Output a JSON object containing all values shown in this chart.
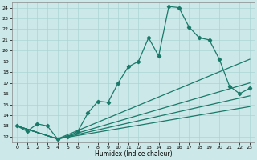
{
  "xlabel": "Humidex (Indice chaleur)",
  "bg_color": "#cce8e8",
  "line_color": "#1a7a6a",
  "grid_color": "#aad4d4",
  "xlim": [
    -0.5,
    23.5
  ],
  "ylim": [
    11.5,
    24.5
  ],
  "yticks": [
    12,
    13,
    14,
    15,
    16,
    17,
    18,
    19,
    20,
    21,
    22,
    23,
    24
  ],
  "xticks": [
    0,
    1,
    2,
    3,
    4,
    5,
    6,
    7,
    8,
    9,
    10,
    11,
    12,
    13,
    14,
    15,
    16,
    17,
    18,
    19,
    20,
    21,
    22,
    23
  ],
  "main_x": [
    0,
    1,
    2,
    3,
    4,
    5,
    6,
    7,
    8,
    9,
    10,
    11,
    12,
    13,
    14,
    15,
    16,
    17,
    18,
    19,
    20,
    21,
    22,
    23
  ],
  "main_y": [
    13.0,
    12.5,
    13.2,
    13.0,
    11.8,
    12.0,
    12.5,
    14.2,
    15.3,
    15.2,
    17.0,
    18.5,
    19.0,
    21.2,
    19.5,
    24.1,
    24.0,
    22.2,
    21.2,
    21.0,
    19.2,
    16.7,
    16.0,
    16.5
  ],
  "trend_lines": [
    {
      "x": [
        0,
        4,
        23
      ],
      "y": [
        13.0,
        11.8,
        19.2
      ]
    },
    {
      "x": [
        0,
        4,
        23
      ],
      "y": [
        13.0,
        11.8,
        17.0
      ]
    },
    {
      "x": [
        0,
        4,
        23
      ],
      "y": [
        13.0,
        11.8,
        15.8
      ]
    },
    {
      "x": [
        0,
        4,
        23
      ],
      "y": [
        13.0,
        11.8,
        14.8
      ]
    }
  ]
}
